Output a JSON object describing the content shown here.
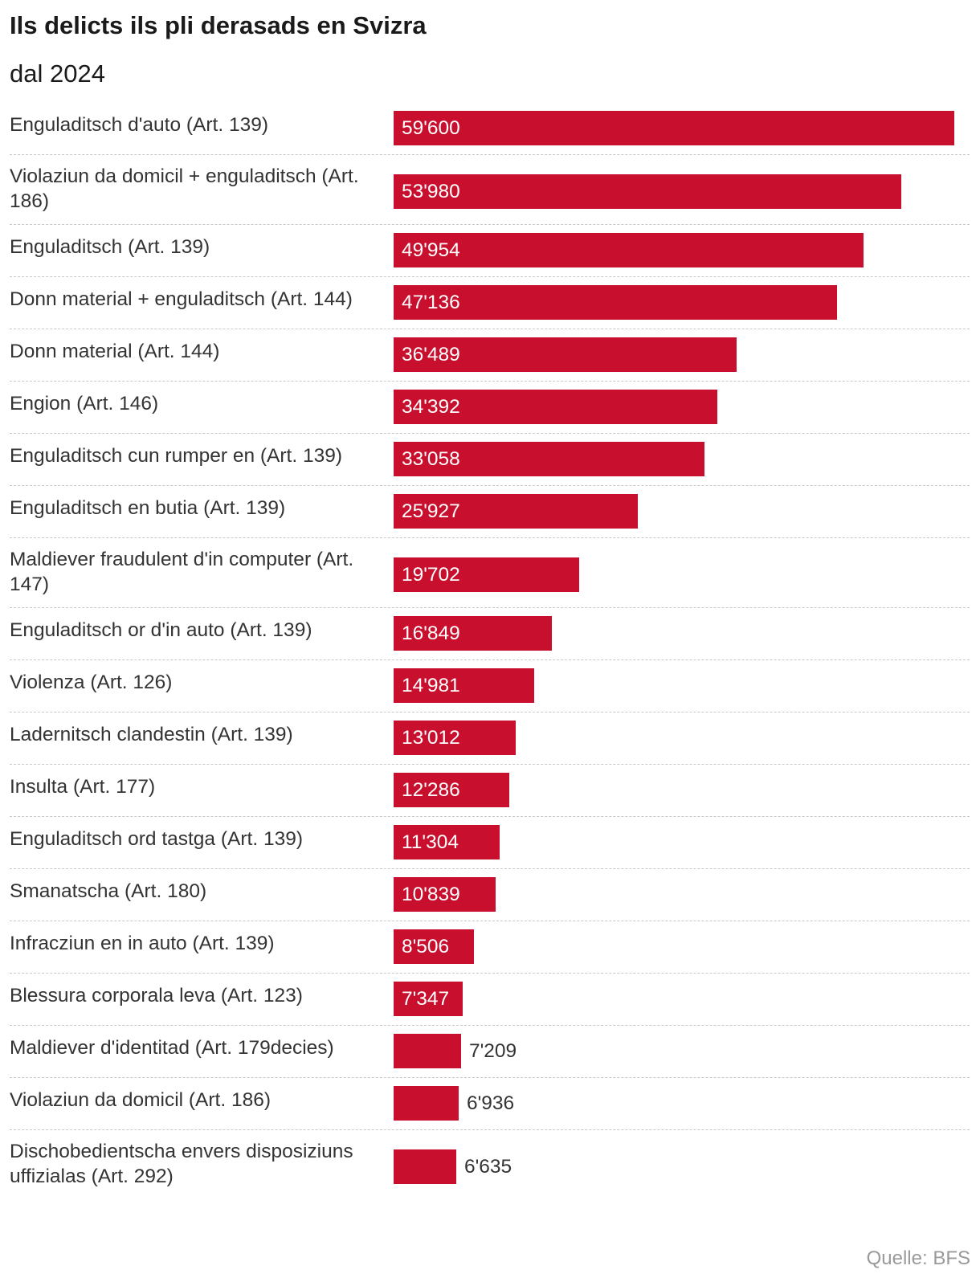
{
  "chart_data": {
    "type": "bar",
    "orientation": "horizontal",
    "title": "Ils delicts ils pli derasads en Svizra",
    "subtitle": "dal 2024",
    "source": "Quelle: BFS",
    "bar_color": "#c8102e",
    "categories": [
      "Enguladitsch d'auto (Art. 139)",
      "Violaziun da domicil + enguladitsch (Art. 186)",
      "Enguladitsch (Art. 139)",
      "Donn material + enguladitsch (Art. 144)",
      "Donn material (Art. 144)",
      "Engion (Art. 146)",
      "Enguladitsch cun rumper en (Art. 139)",
      "Enguladitsch en butia (Art. 139)",
      "Maldiever fraudulent d'in computer (Art. 147)",
      "Enguladitsch or d'in auto (Art. 139)",
      "Violenza (Art. 126)",
      "Ladernitsch clandestin (Art. 139)",
      "Insulta (Art. 177)",
      "Enguladitsch ord tastga (Art. 139)",
      "Smanatscha (Art. 180)",
      "Infracziun en in auto (Art. 139)",
      "Blessura corporala leva (Art. 123)",
      "Maldiever d'identitad (Art. 179decies)",
      "Violaziun da domicil (Art. 186)",
      "Dischobedientscha envers disposiziuns uffizialas (Art. 292)"
    ],
    "values": [
      59600,
      53980,
      49954,
      47136,
      36489,
      34392,
      33058,
      25927,
      19702,
      16849,
      14981,
      13012,
      12286,
      11304,
      10839,
      8506,
      7347,
      7209,
      6936,
      6635
    ],
    "value_labels": [
      "59'600",
      "53'980",
      "49'954",
      "47'136",
      "36'489",
      "34'392",
      "33'058",
      "25'927",
      "19'702",
      "16'849",
      "14'981",
      "13'012",
      "12'286",
      "11'304",
      "10'839",
      "8'506",
      "7'347",
      "7'209",
      "6'936",
      "6'635"
    ],
    "xlim": [
      0,
      59600
    ],
    "grid": false,
    "legend": "none"
  }
}
